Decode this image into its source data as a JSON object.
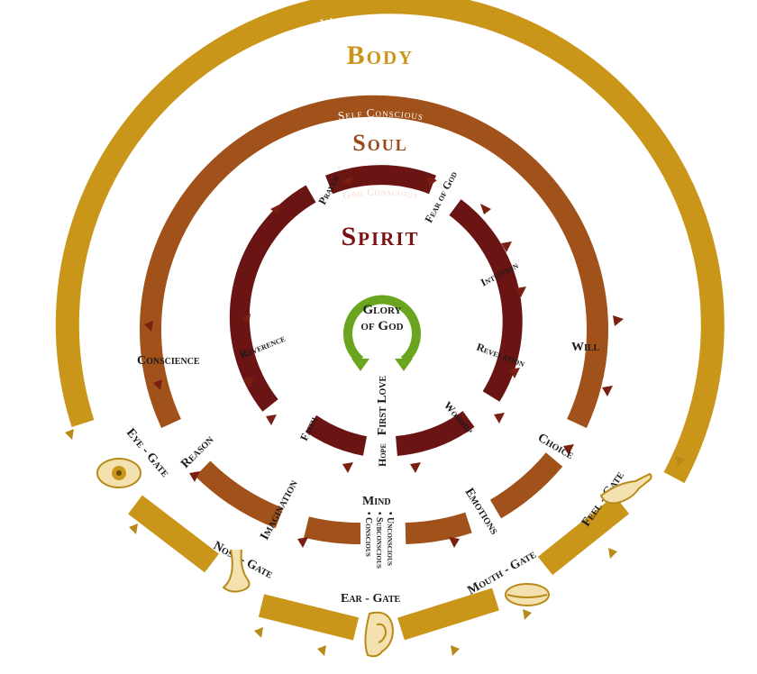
{
  "colors": {
    "body_ring": "#c9961a",
    "soul_ring": "#a0521a",
    "spirit_ring": "#6b1414",
    "glory_ring": "#6aa51f",
    "background": "#ffffff"
  },
  "rings": {
    "body": {
      "subtitle": "World Conscious",
      "title": "Body"
    },
    "soul": {
      "subtitle": "Self Conscious",
      "title": "Soul"
    },
    "spirit": {
      "subtitle": "God Conscious",
      "title": "Spirit"
    }
  },
  "center": {
    "line1": "Glory",
    "line2": "of God",
    "first_love": "First Love"
  },
  "spirit_labels": {
    "prayer": "Prayer",
    "fear_of_god": "Fear of God",
    "intuition": "Intuition",
    "revelation": "Revelation",
    "worship": "Worship",
    "hope": "Hope",
    "faith": "Faith",
    "reverence": "Reverence"
  },
  "soul_labels": {
    "conscience": "Conscience",
    "will": "Will",
    "choice": "Choice",
    "reason": "Reason",
    "imagination": "Imagination",
    "emotions": "Emotions",
    "mind": "Mind",
    "mind_unconscious": "• Unconscious",
    "mind_subconscious": "• Subconscious",
    "mind_conscious": "• Conscious"
  },
  "gates": {
    "eye": "Eye - Gate",
    "nose": "Nose - Gate",
    "ear": "Ear - Gate",
    "mouth": "Mouth - Gate",
    "feel": "Feel - Gate"
  },
  "icons": [
    "eye-icon",
    "nose-icon",
    "ear-icon",
    "mouth-icon",
    "hand-icon"
  ]
}
